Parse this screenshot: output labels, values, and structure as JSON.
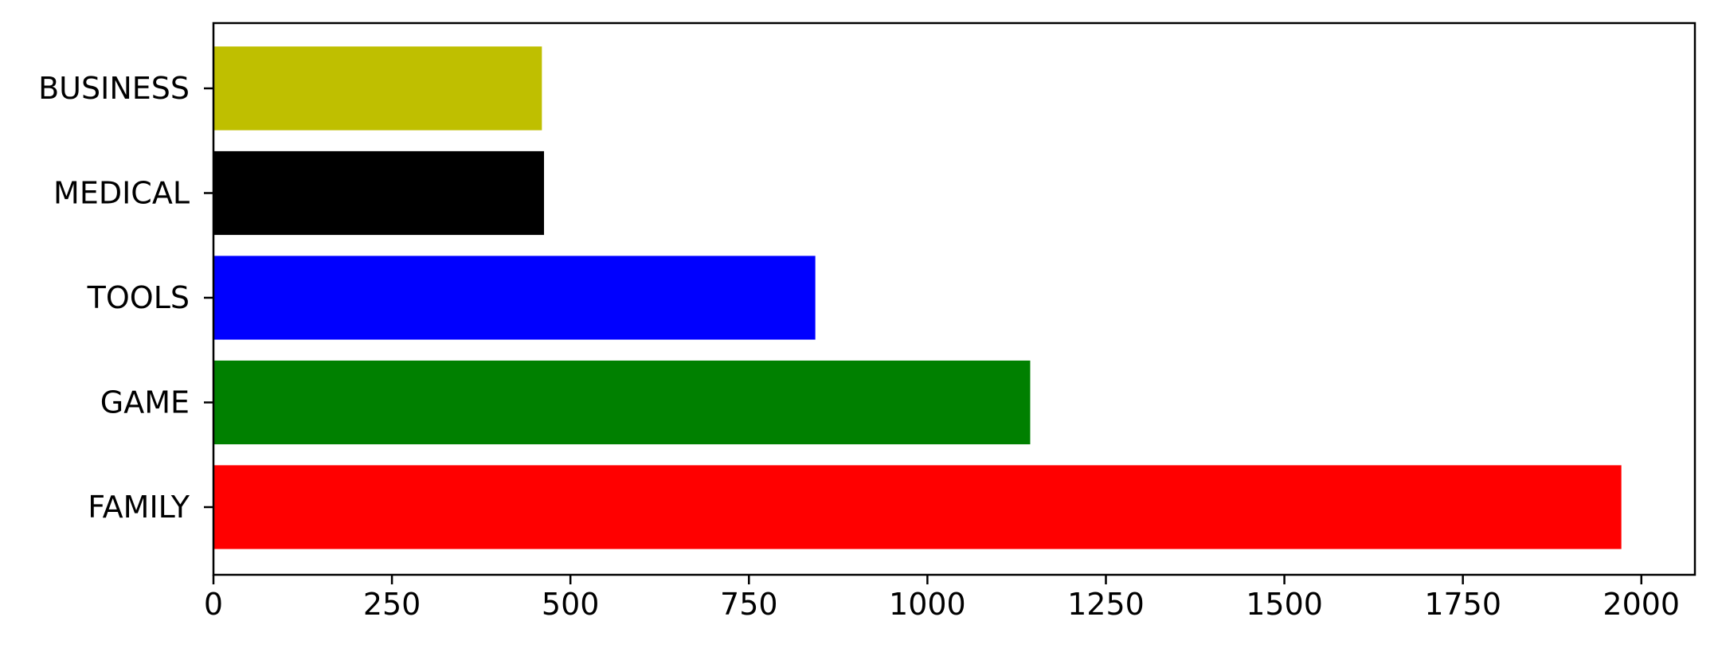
{
  "chart_data": {
    "type": "bar",
    "orientation": "horizontal",
    "title": "",
    "xlabel": "",
    "ylabel": "",
    "categories": [
      "FAMILY",
      "GAME",
      "TOOLS",
      "MEDICAL",
      "BUSINESS"
    ],
    "values": [
      1972,
      1144,
      843,
      463,
      460
    ],
    "colors": [
      "#ff0000",
      "#008000",
      "#0000ff",
      "#000000",
      "#bfbf00"
    ],
    "xlim": [
      0,
      2075
    ],
    "xticks": [
      0,
      250,
      500,
      750,
      1000,
      1250,
      1500,
      1750,
      2000
    ],
    "grid": false,
    "legend": "none"
  }
}
